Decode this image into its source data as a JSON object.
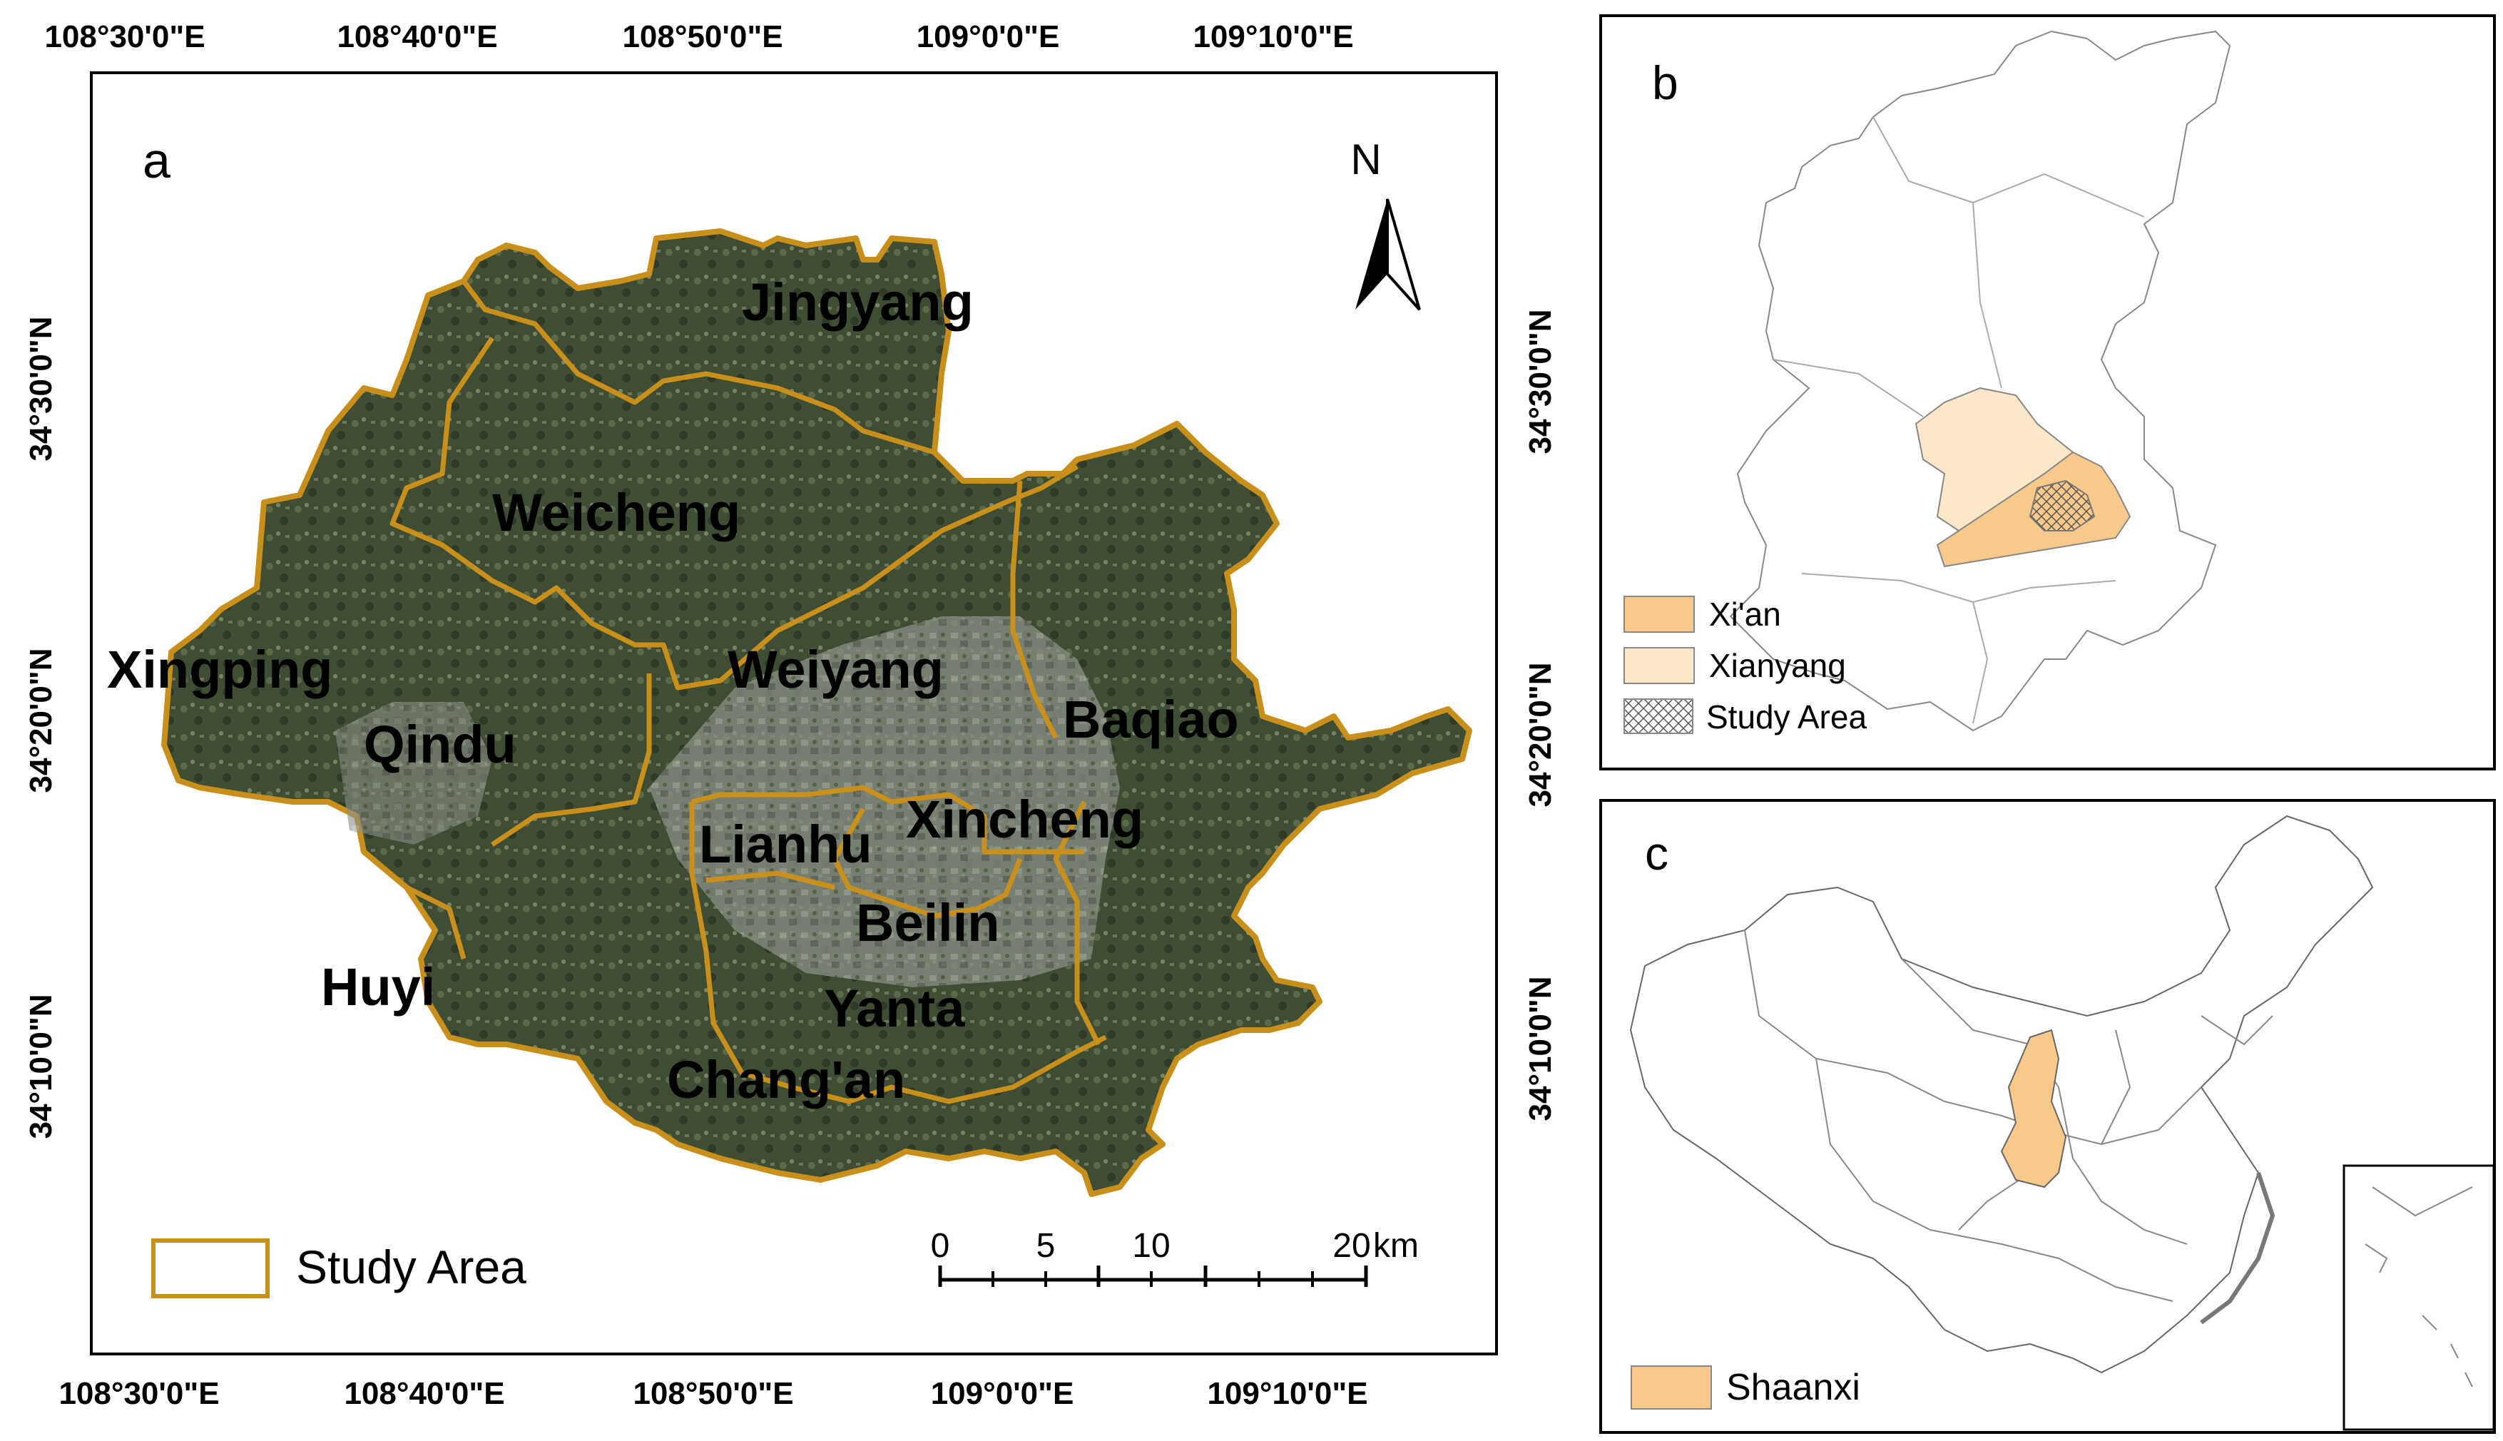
{
  "panel_a": {
    "letter": "a",
    "north_label": "N",
    "top_lon": [
      "108°30'0\"E",
      "108°40'0\"E",
      "108°50'0\"E",
      "109°0'0\"E",
      "109°10'0\"E"
    ],
    "bottom_lon": [
      "108°30'0\"E",
      "108°40'0\"E",
      "108°50'0\"E",
      "109°0'0\"E",
      "109°10'0\"E"
    ],
    "left_lat": [
      "34°30'0\"N",
      "34°20'0\"N",
      "34°10'0\"N"
    ],
    "right_lat": [
      "34°30'0\"N",
      "34°20'0\"N",
      "34°10'0\"N"
    ],
    "districts": [
      "Jingyang",
      "Weicheng",
      "Xingping",
      "Weiyang",
      "Qindu",
      "Baqiao",
      "Xincheng",
      "Lianhu",
      "Beilin",
      "Huyi",
      "Yanta",
      "Chang'an"
    ],
    "legend_label": "Study Area",
    "scale": {
      "ticks": [
        "0",
        "5",
        "10",
        "20"
      ],
      "unit": "km"
    },
    "colors": {
      "boundary": "#c8901a",
      "imagery": "#3d4a33"
    }
  },
  "panel_b": {
    "letter": "b",
    "legend": [
      {
        "label": "Xi'an",
        "color": "#f8c98a"
      },
      {
        "label": "Xianyang",
        "color": "#fbe8c8"
      },
      {
        "label": "Study Area",
        "color": "hatch"
      }
    ]
  },
  "panel_c": {
    "letter": "c",
    "legend": [
      {
        "label": "Shaanxi",
        "color": "#f8c98a"
      }
    ]
  }
}
